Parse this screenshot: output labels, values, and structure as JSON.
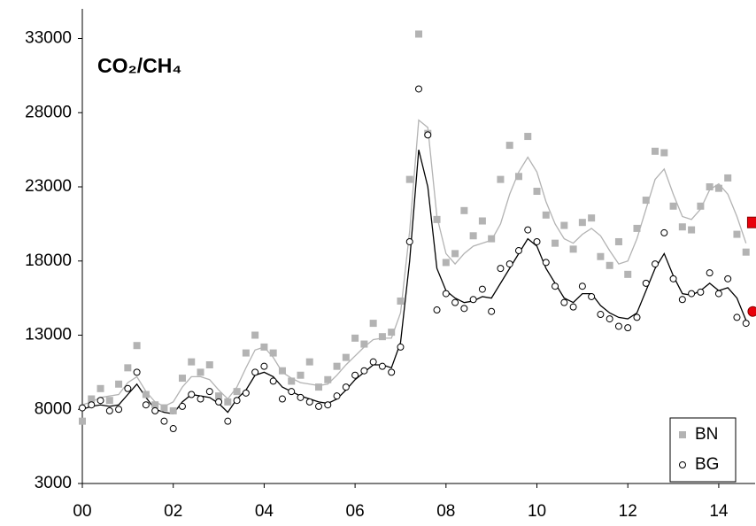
{
  "chart_data": {
    "type": "scatter",
    "title": "CO₂/CH₄",
    "x": [
      0,
      0.2,
      0.4,
      0.6,
      0.8,
      1,
      1.2,
      1.4,
      1.6,
      1.8,
      2,
      2.2,
      2.4,
      2.6,
      2.8,
      3,
      3.2,
      3.4,
      3.6,
      3.8,
      4,
      4.2,
      4.4,
      4.6,
      4.8,
      5,
      5.2,
      5.4,
      5.6,
      5.8,
      6,
      6.2,
      6.4,
      6.6,
      6.8,
      7,
      7.2,
      7.4,
      7.6,
      7.8,
      8,
      8.2,
      8.4,
      8.6,
      8.8,
      9,
      9.2,
      9.4,
      9.6,
      9.8,
      10,
      10.2,
      10.4,
      10.6,
      10.8,
      11,
      11.2,
      11.4,
      11.6,
      11.8,
      12,
      12.2,
      12.4,
      12.6,
      12.8,
      13,
      13.2,
      13.4,
      13.6,
      13.8,
      14,
      14.2,
      14.4,
      14.6
    ],
    "series": [
      {
        "name": "BN",
        "color": "#b3b3b3",
        "marker": "square",
        "values": [
          7200,
          8700,
          9400,
          8600,
          9700,
          10800,
          12300,
          9000,
          8300,
          8100,
          7900,
          10100,
          11200,
          10500,
          11000,
          8900,
          8500,
          9200,
          11800,
          13000,
          12200,
          11800,
          10600,
          9900,
          10300,
          11200,
          9500,
          10000,
          10900,
          11500,
          12800,
          12400,
          13800,
          12900,
          13200,
          15300,
          23500,
          33300,
          26600,
          20800,
          17900,
          18500,
          21400,
          19700,
          20700,
          19500,
          23500,
          25800,
          23700,
          26400,
          22700,
          21100,
          19200,
          20400,
          18800,
          20600,
          20900,
          18300,
          17700,
          19300,
          17100,
          20200,
          22100,
          25400,
          25300,
          21700,
          20300,
          20100,
          21700,
          23000,
          22900,
          23600,
          19800,
          18600
        ],
        "trend": [
          8300,
          8500,
          8800,
          8900,
          9000,
          9800,
          10200,
          9200,
          8500,
          8200,
          8500,
          9500,
          10200,
          10200,
          10000,
          9300,
          8700,
          9500,
          10800,
          12000,
          12200,
          11500,
          10500,
          10100,
          9800,
          9700,
          9600,
          9700,
          10300,
          11000,
          11600,
          12200,
          12700,
          12800,
          12800,
          14500,
          20000,
          27500,
          27000,
          21000,
          18500,
          17800,
          18500,
          19000,
          19200,
          19400,
          20500,
          22500,
          24000,
          25000,
          24000,
          22000,
          20500,
          19500,
          19200,
          19800,
          20200,
          19700,
          18700,
          17800,
          18000,
          19500,
          21500,
          23500,
          24200,
          22500,
          21000,
          20800,
          21500,
          22800,
          23200,
          22500,
          21000,
          19200
        ],
        "trend_color": "#b3b3b3"
      },
      {
        "name": "BG",
        "color": "#000000",
        "marker": "circle",
        "values": [
          8100,
          8300,
          8600,
          7900,
          8000,
          9400,
          10500,
          8300,
          7900,
          7200,
          6700,
          8200,
          9000,
          8700,
          9200,
          8500,
          7200,
          8600,
          9100,
          10500,
          10900,
          9900,
          8700,
          9200,
          8800,
          8500,
          8200,
          8300,
          8900,
          9500,
          10300,
          10600,
          11200,
          10900,
          10500,
          12200,
          19300,
          29600,
          26500,
          14700,
          15800,
          15200,
          14800,
          15400,
          16100,
          14600,
          17500,
          17800,
          18700,
          20100,
          19300,
          17900,
          16300,
          15200,
          14900,
          16300,
          15600,
          14400,
          14100,
          13600,
          13500,
          14200,
          16500,
          17800,
          19900,
          16800,
          15400,
          15800,
          15900,
          17200,
          15800,
          16800,
          14200,
          13800
        ],
        "trend": [
          8000,
          8200,
          8300,
          8200,
          8300,
          9000,
          9700,
          8800,
          8000,
          7800,
          7700,
          8500,
          9000,
          8900,
          8800,
          8400,
          7800,
          8700,
          9300,
          10300,
          10500,
          10200,
          9500,
          9200,
          8900,
          8700,
          8500,
          8400,
          8700,
          9300,
          10000,
          10500,
          11000,
          11000,
          10800,
          12500,
          18000,
          25500,
          23000,
          17500,
          16000,
          15500,
          15200,
          15300,
          15600,
          15500,
          16500,
          17500,
          18500,
          19500,
          19000,
          17500,
          16500,
          15500,
          15200,
          15800,
          15800,
          15000,
          14500,
          14200,
          14100,
          14500,
          16000,
          17500,
          18500,
          17000,
          15800,
          15700,
          16000,
          16500,
          16000,
          16200,
          15500,
          14000
        ],
        "trend_color": "#000000"
      }
    ],
    "highlights": [
      {
        "x": 14.75,
        "value": 20600,
        "color": "#e8000b",
        "marker": "square"
      },
      {
        "x": 14.75,
        "value": 14600,
        "color": "#e8000b",
        "marker": "circle"
      }
    ],
    "xlim": [
      0,
      14.8
    ],
    "ylim": [
      3000,
      35000
    ],
    "xticks": [
      {
        "value": 0,
        "label": "00"
      },
      {
        "value": 2,
        "label": "02"
      },
      {
        "value": 4,
        "label": "04"
      },
      {
        "value": 6,
        "label": "06"
      },
      {
        "value": 8,
        "label": "08"
      },
      {
        "value": 10,
        "label": "10"
      },
      {
        "value": 12,
        "label": "12"
      },
      {
        "value": 14,
        "label": "14"
      }
    ],
    "yticks": [
      3000,
      8000,
      13000,
      18000,
      23000,
      28000,
      33000
    ],
    "legend": "lower right"
  }
}
